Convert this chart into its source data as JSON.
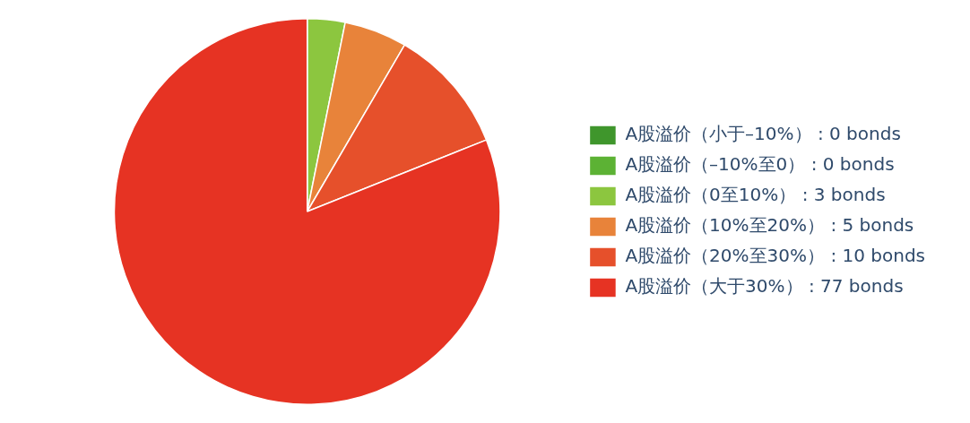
{
  "chart_data": {
    "type": "pie",
    "categories": [
      "A股溢价（小于–10%） : 0 bonds",
      "A股溢价（–10%至0） : 0 bonds",
      "A股溢价（0至10%） : 3 bonds",
      "A股溢价（10%至20%） : 5 bonds",
      "A股溢价（20%至30%） : 10 bonds",
      "A股溢价（大于30%） : 77 bonds"
    ],
    "values": [
      0,
      0,
      3,
      5,
      10,
      77
    ],
    "colors": [
      "#3f962c",
      "#5cb234",
      "#8cc63f",
      "#e8833a",
      "#e6502b",
      "#e63323"
    ],
    "legend": "right"
  }
}
